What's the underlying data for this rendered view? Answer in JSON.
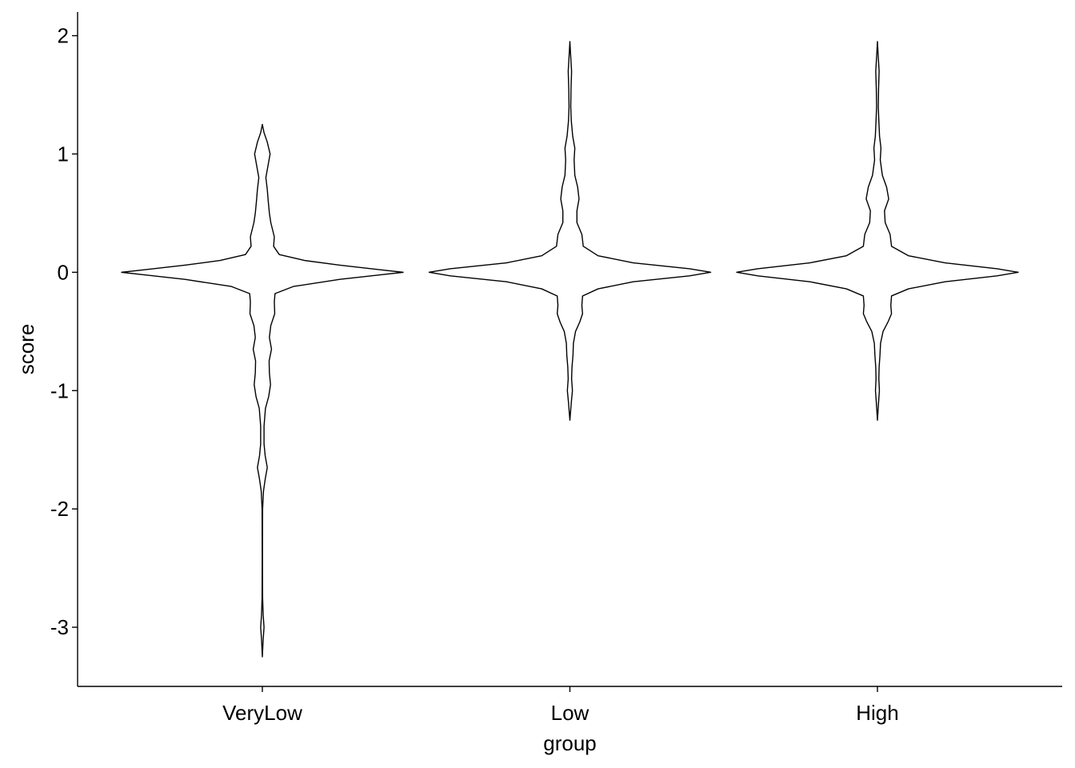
{
  "chart_data": {
    "type": "violin",
    "title": "",
    "xlabel": "group",
    "ylabel": "score",
    "categories": [
      "VeryLow",
      "Low",
      "High"
    ],
    "yticks": [
      -3,
      -2,
      -1,
      0,
      1,
      2
    ],
    "ytick_labels": [
      "-3",
      "-2",
      "-1",
      "0",
      "1",
      "2"
    ],
    "ylim": [
      -3.5,
      2.2
    ],
    "grid": false,
    "legend": "none",
    "line_color": "#000000",
    "fill_color": "#ffffff",
    "violins": [
      {
        "category": "VeryLow",
        "min": -3.25,
        "max": 1.25,
        "profile": [
          [
            -3.25,
            0
          ],
          [
            -3.1,
            0.006
          ],
          [
            -3.0,
            0.012
          ],
          [
            -2.9,
            0.006
          ],
          [
            -2.75,
            0.002
          ],
          [
            -2.4,
            0.001
          ],
          [
            -2.0,
            0.002
          ],
          [
            -1.85,
            0.008
          ],
          [
            -1.75,
            0.02
          ],
          [
            -1.65,
            0.035
          ],
          [
            -1.55,
            0.02
          ],
          [
            -1.45,
            0.012
          ],
          [
            -1.3,
            0.012
          ],
          [
            -1.15,
            0.022
          ],
          [
            -1.05,
            0.045
          ],
          [
            -0.95,
            0.058
          ],
          [
            -0.85,
            0.05
          ],
          [
            -0.75,
            0.048
          ],
          [
            -0.65,
            0.065
          ],
          [
            -0.55,
            0.05
          ],
          [
            -0.45,
            0.06
          ],
          [
            -0.35,
            0.088
          ],
          [
            -0.25,
            0.085
          ],
          [
            -0.18,
            0.09
          ],
          [
            -0.12,
            0.22
          ],
          [
            -0.06,
            0.55
          ],
          [
            -0.02,
            0.85
          ],
          [
            0.0,
            1.0
          ],
          [
            0.02,
            0.85
          ],
          [
            0.06,
            0.55
          ],
          [
            0.1,
            0.3
          ],
          [
            0.15,
            0.12
          ],
          [
            0.22,
            0.08
          ],
          [
            0.3,
            0.085
          ],
          [
            0.42,
            0.06
          ],
          [
            0.5,
            0.05
          ],
          [
            0.6,
            0.042
          ],
          [
            0.7,
            0.035
          ],
          [
            0.8,
            0.025
          ],
          [
            0.9,
            0.04
          ],
          [
            1.0,
            0.055
          ],
          [
            1.1,
            0.035
          ],
          [
            1.18,
            0.012
          ],
          [
            1.25,
            0
          ]
        ]
      },
      {
        "category": "Low",
        "min": -1.25,
        "max": 1.95,
        "profile": [
          [
            -1.25,
            0
          ],
          [
            -1.1,
            0.01
          ],
          [
            -1.0,
            0.018
          ],
          [
            -0.9,
            0.012
          ],
          [
            -0.8,
            0.015
          ],
          [
            -0.7,
            0.022
          ],
          [
            -0.6,
            0.025
          ],
          [
            -0.5,
            0.04
          ],
          [
            -0.42,
            0.07
          ],
          [
            -0.35,
            0.09
          ],
          [
            -0.28,
            0.085
          ],
          [
            -0.2,
            0.09
          ],
          [
            -0.14,
            0.2
          ],
          [
            -0.08,
            0.45
          ],
          [
            -0.03,
            0.85
          ],
          [
            0.0,
            1.0
          ],
          [
            0.03,
            0.85
          ],
          [
            0.08,
            0.45
          ],
          [
            0.14,
            0.2
          ],
          [
            0.22,
            0.095
          ],
          [
            0.32,
            0.085
          ],
          [
            0.42,
            0.05
          ],
          [
            0.52,
            0.05
          ],
          [
            0.62,
            0.065
          ],
          [
            0.72,
            0.055
          ],
          [
            0.82,
            0.035
          ],
          [
            0.95,
            0.03
          ],
          [
            1.05,
            0.035
          ],
          [
            1.15,
            0.02
          ],
          [
            1.28,
            0.01
          ],
          [
            1.4,
            0.006
          ],
          [
            1.55,
            0.008
          ],
          [
            1.7,
            0.012
          ],
          [
            1.82,
            0.006
          ],
          [
            1.95,
            0
          ]
        ]
      },
      {
        "category": "High",
        "min": -1.25,
        "max": 1.95,
        "profile": [
          [
            -1.25,
            0
          ],
          [
            -1.1,
            0.008
          ],
          [
            -1.0,
            0.014
          ],
          [
            -0.9,
            0.01
          ],
          [
            -0.8,
            0.012
          ],
          [
            -0.7,
            0.018
          ],
          [
            -0.6,
            0.022
          ],
          [
            -0.5,
            0.04
          ],
          [
            -0.42,
            0.075
          ],
          [
            -0.35,
            0.1
          ],
          [
            -0.28,
            0.095
          ],
          [
            -0.2,
            0.1
          ],
          [
            -0.14,
            0.22
          ],
          [
            -0.08,
            0.48
          ],
          [
            -0.03,
            0.85
          ],
          [
            0.0,
            1.0
          ],
          [
            0.03,
            0.85
          ],
          [
            0.08,
            0.48
          ],
          [
            0.14,
            0.22
          ],
          [
            0.22,
            0.1
          ],
          [
            0.32,
            0.09
          ],
          [
            0.42,
            0.055
          ],
          [
            0.52,
            0.05
          ],
          [
            0.62,
            0.08
          ],
          [
            0.72,
            0.065
          ],
          [
            0.82,
            0.035
          ],
          [
            0.95,
            0.02
          ],
          [
            1.05,
            0.025
          ],
          [
            1.15,
            0.015
          ],
          [
            1.28,
            0.01
          ],
          [
            1.4,
            0.006
          ],
          [
            1.55,
            0.008
          ],
          [
            1.7,
            0.012
          ],
          [
            1.82,
            0.006
          ],
          [
            1.95,
            0
          ]
        ]
      }
    ]
  }
}
